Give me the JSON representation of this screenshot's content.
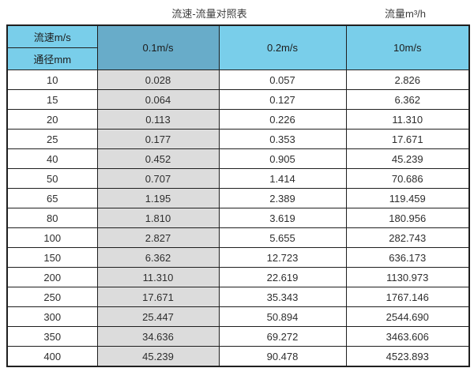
{
  "title": "流速-流量对照表",
  "unit_title": "流量m³/h",
  "chart_data": {
    "type": "table",
    "title": "流速-流量对照表",
    "unit_label": "流量m³/h",
    "corner_top": "流速m/s",
    "corner_bottom": "通径mm",
    "columns": [
      "0.1m/s",
      "0.2m/s",
      "10m/s"
    ],
    "rows": [
      {
        "diameter": "10",
        "values": [
          "0.028",
          "0.057",
          "2.826"
        ]
      },
      {
        "diameter": "15",
        "values": [
          "0.064",
          "0.127",
          "6.362"
        ]
      },
      {
        "diameter": "20",
        "values": [
          "0.113",
          "0.226",
          "11.310"
        ]
      },
      {
        "diameter": "25",
        "values": [
          "0.177",
          "0.353",
          "17.671"
        ]
      },
      {
        "diameter": "40",
        "values": [
          "0.452",
          "0.905",
          "45.239"
        ]
      },
      {
        "diameter": "50",
        "values": [
          "0.707",
          "1.414",
          "70.686"
        ]
      },
      {
        "diameter": "65",
        "values": [
          "1.195",
          "2.389",
          "119.459"
        ]
      },
      {
        "diameter": "80",
        "values": [
          "1.810",
          "3.619",
          "180.956"
        ]
      },
      {
        "diameter": "100",
        "values": [
          "2.827",
          "5.655",
          "282.743"
        ]
      },
      {
        "diameter": "150",
        "values": [
          "6.362",
          "12.723",
          "636.173"
        ]
      },
      {
        "diameter": "200",
        "values": [
          "11.310",
          "22.619",
          "1130.973"
        ]
      },
      {
        "diameter": "250",
        "values": [
          "17.671",
          "35.343",
          "1767.146"
        ]
      },
      {
        "diameter": "300",
        "values": [
          "25.447",
          "50.894",
          "2544.690"
        ]
      },
      {
        "diameter": "350",
        "values": [
          "34.636",
          "69.272",
          "3463.606"
        ]
      },
      {
        "diameter": "400",
        "values": [
          "45.239",
          "90.478",
          "4523.893"
        ]
      }
    ]
  },
  "colors": {
    "header_light_blue": "#79ceea",
    "header_dark_blue": "#68acc9",
    "gray_column": "#dcdcdc",
    "border": "#1f1f1f"
  }
}
